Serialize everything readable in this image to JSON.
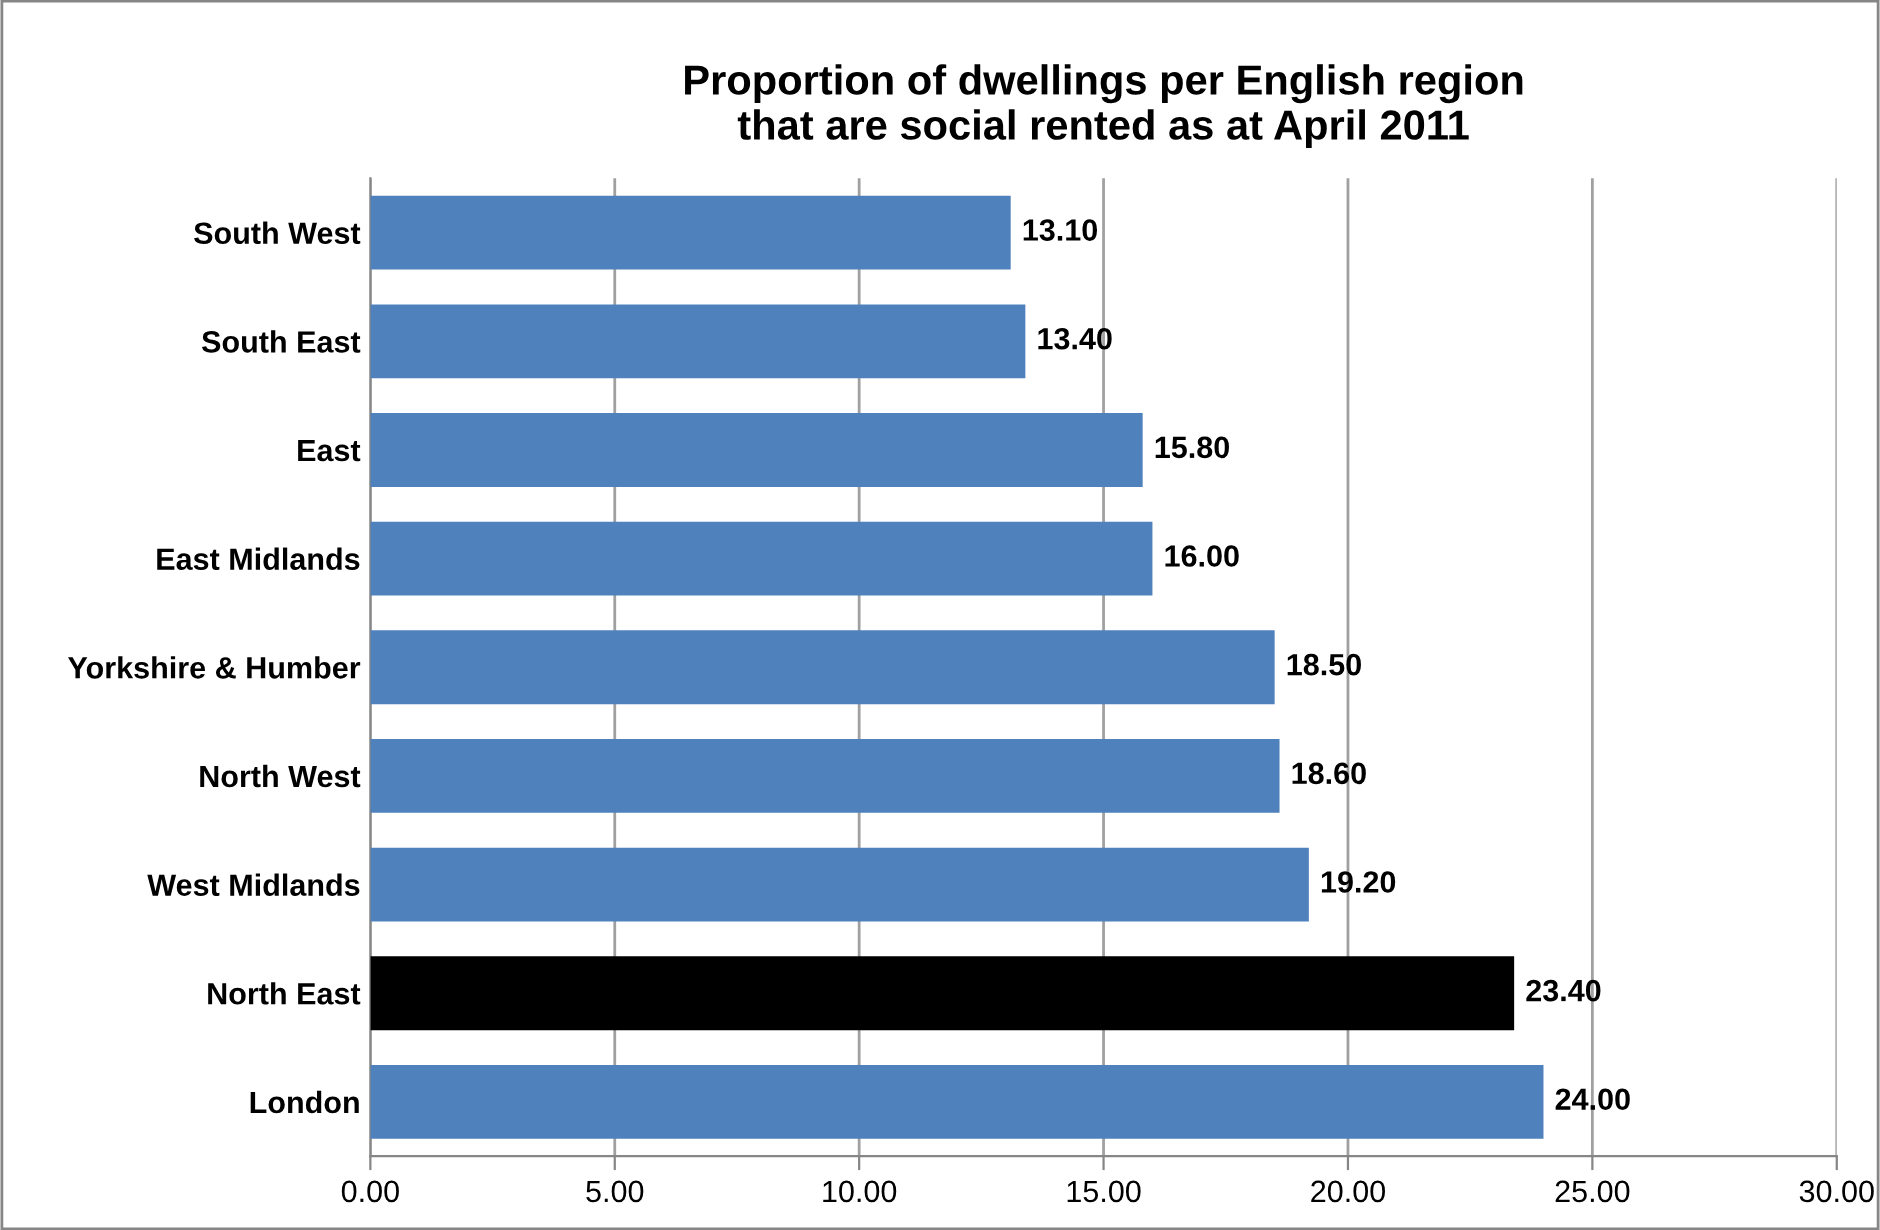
{
  "chart_data": {
    "type": "bar",
    "orientation": "horizontal",
    "title": "Proportion of dwellings per English region\nthat are social rented as at April 2011",
    "categories": [
      "South West",
      "South East",
      "East",
      "East Midlands",
      "Yorkshire & Humber",
      "North West",
      "West Midlands",
      "North East",
      "London"
    ],
    "values": [
      13.1,
      13.4,
      15.8,
      16.0,
      18.5,
      18.6,
      19.2,
      23.4,
      24.0
    ],
    "colors": [
      "#4f81bd",
      "#4f81bd",
      "#4f81bd",
      "#4f81bd",
      "#4f81bd",
      "#4f81bd",
      "#4f81bd",
      "#000000",
      "#4f81bd"
    ],
    "value_labels": [
      "13.10",
      "13.40",
      "15.80",
      "16.00",
      "18.50",
      "18.60",
      "19.20",
      "23.40",
      "24.00"
    ],
    "xlim": [
      0,
      30
    ],
    "xticks": [
      {
        "value": 0,
        "label": "0.00"
      },
      {
        "value": 5,
        "label": "5.00"
      },
      {
        "value": 10,
        "label": "10.00"
      },
      {
        "value": 15,
        "label": "15.00"
      },
      {
        "value": 20,
        "label": "20.00"
      },
      {
        "value": 25,
        "label": "25.00"
      },
      {
        "value": 30,
        "label": "30.00"
      }
    ],
    "grid": "x",
    "legend": false
  }
}
